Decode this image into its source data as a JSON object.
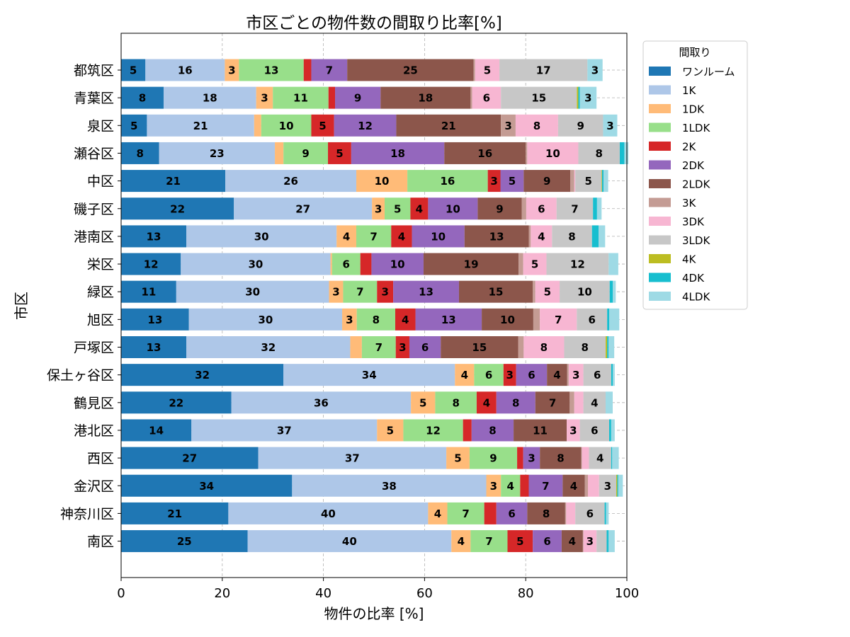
{
  "chart_data": {
    "type": "bar",
    "orientation": "horizontal",
    "stacked": true,
    "title": "市区ごとの物件数の間取り比率[%]",
    "xlabel": "物件の比率 [%]",
    "ylabel": "市区",
    "xlim": [
      0,
      100
    ],
    "xticks": [
      "0",
      "20",
      "40",
      "60",
      "80",
      "100"
    ],
    "grid": true,
    "legend": {
      "title": "間取り",
      "placement": "outside-top-right"
    },
    "categories": [
      "都筑区",
      "青葉区",
      "泉区",
      "瀬谷区",
      "中区",
      "磯子区",
      "港南区",
      "栄区",
      "緑区",
      "旭区",
      "戸塚区",
      "保土ヶ谷区",
      "鶴見区",
      "港北区",
      "西区",
      "金沢区",
      "神奈川区",
      "南区"
    ],
    "series": [
      {
        "name": "ワンルーム",
        "color": "#1f77b4",
        "values": [
          4.8,
          8.4,
          5.1,
          7.5,
          20.6,
          22.3,
          12.9,
          11.8,
          10.9,
          13.4,
          12.9,
          32.1,
          21.8,
          13.9,
          27.1,
          33.8,
          21.2,
          25.0
        ]
      },
      {
        "name": "1K",
        "color": "#aec7e8",
        "values": [
          15.7,
          18.3,
          21.2,
          22.9,
          25.9,
          27.3,
          29.7,
          29.6,
          30.2,
          30.3,
          32.4,
          33.9,
          35.5,
          36.7,
          37.2,
          38.4,
          39.5,
          40.3
        ]
      },
      {
        "name": "1DK",
        "color": "#ffbb78",
        "values": [
          2.8,
          3.3,
          1.4,
          1.7,
          10.1,
          2.5,
          3.9,
          0.3,
          2.8,
          2.9,
          2.3,
          3.8,
          4.8,
          5.2,
          4.6,
          2.9,
          3.8,
          3.8
        ]
      },
      {
        "name": "1LDK",
        "color": "#98df8a",
        "values": [
          12.8,
          11.0,
          9.9,
          8.8,
          15.9,
          5.1,
          6.9,
          5.6,
          6.7,
          7.6,
          6.7,
          5.8,
          8.2,
          11.8,
          9.4,
          3.8,
          7.3,
          7.3
        ]
      },
      {
        "name": "2K",
        "color": "#d62728",
        "values": [
          1.5,
          1.3,
          4.5,
          4.6,
          2.5,
          3.5,
          4.1,
          2.2,
          3.2,
          4.0,
          2.7,
          2.5,
          3.9,
          1.7,
          1.2,
          1.7,
          2.4,
          5.0
        ]
      },
      {
        "name": "2DK",
        "color": "#9467bd",
        "values": [
          7.1,
          9.0,
          12.3,
          18.4,
          4.6,
          9.8,
          10.4,
          10.3,
          13.0,
          13.1,
          6.2,
          6.1,
          7.7,
          8.3,
          3.3,
          6.7,
          6.1,
          5.7
        ]
      },
      {
        "name": "2LDK",
        "color": "#8c564b",
        "values": [
          25.0,
          17.8,
          20.7,
          16.1,
          9.2,
          8.7,
          12.7,
          18.8,
          14.6,
          10.2,
          15.3,
          4.0,
          6.8,
          10.5,
          8.2,
          4.4,
          7.5,
          4.2
        ]
      },
      {
        "name": "3K",
        "color": "#c49c94",
        "values": [
          0.3,
          0.3,
          2.9,
          0.3,
          0.8,
          0.9,
          0.4,
          0.9,
          0.5,
          1.3,
          1.1,
          0.3,
          0.9,
          0.0,
          0.1,
          0.6,
          0.2,
          0.1
        ]
      },
      {
        "name": "3DK",
        "color": "#f7b6d2",
        "values": [
          4.8,
          5.7,
          8.4,
          10.1,
          0.2,
          6.0,
          4.2,
          4.6,
          4.8,
          7.3,
          8.0,
          2.9,
          1.8,
          2.6,
          1.4,
          2.2,
          1.8,
          2.6
        ]
      },
      {
        "name": "3LDK",
        "color": "#c7c7c7",
        "values": [
          17.4,
          15.0,
          8.9,
          8.2,
          5.2,
          7.2,
          7.9,
          12.3,
          9.9,
          6.0,
          8.2,
          5.5,
          4.4,
          5.8,
          4.4,
          3.4,
          5.8,
          2.0
        ]
      },
      {
        "name": "4K",
        "color": "#bcbd22",
        "values": [
          0.0,
          0.3,
          0.0,
          0.0,
          0.1,
          0.0,
          0.0,
          0.0,
          0.0,
          0.0,
          0.3,
          0.0,
          0.0,
          0.0,
          0.0,
          0.2,
          0.0,
          0.0
        ]
      },
      {
        "name": "4DK",
        "color": "#17becf",
        "values": [
          0.0,
          0.3,
          0.0,
          0.9,
          0.3,
          0.8,
          1.3,
          0.0,
          0.6,
          0.4,
          0.3,
          0.3,
          0.0,
          0.4,
          0.2,
          0.2,
          0.3,
          0.4
        ]
      },
      {
        "name": "4LDK",
        "color": "#9edae5",
        "values": [
          3.0,
          3.3,
          2.8,
          0.8,
          0.9,
          0.9,
          1.3,
          1.9,
          0.6,
          2.0,
          1.1,
          0.4,
          1.4,
          0.7,
          1.3,
          0.9,
          0.5,
          1.2
        ]
      }
    ]
  }
}
